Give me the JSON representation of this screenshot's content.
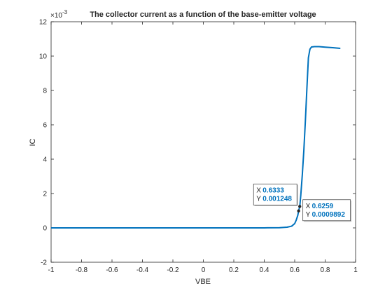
{
  "chart_data": {
    "type": "line",
    "title": "The collector current as a function of the base-emitter voltage",
    "xlabel": "VBE",
    "ylabel": "IC",
    "xlim": [
      -1,
      1
    ],
    "ylim": [
      -0.002,
      0.012
    ],
    "y_exponent_label": "×10",
    "y_exponent_power": "-3",
    "x_ticks": [
      -1,
      -0.8,
      -0.6,
      -0.4,
      -0.2,
      0,
      0.2,
      0.4,
      0.6,
      0.8,
      1
    ],
    "x_tick_labels": [
      "-1",
      "-0.8",
      "-0.6",
      "-0.4",
      "-0.2",
      "0",
      "0.2",
      "0.4",
      "0.6",
      "0.8",
      "1"
    ],
    "y_ticks": [
      -0.002,
      0,
      0.002,
      0.004,
      0.006,
      0.008,
      0.01,
      0.012
    ],
    "y_tick_labels": [
      "-2",
      "0",
      "2",
      "4",
      "6",
      "8",
      "10",
      "12"
    ],
    "grid": false,
    "line_color": "#0072bd",
    "series": [
      {
        "x": [
          -1,
          -0.8,
          -0.6,
          -0.4,
          -0.2,
          0,
          0.2,
          0.4,
          0.5,
          0.55,
          0.58,
          0.6,
          0.61,
          0.62,
          0.6259,
          0.6333,
          0.64,
          0.65,
          0.66,
          0.67,
          0.68,
          0.69,
          0.7,
          0.71,
          0.73,
          0.76,
          0.8,
          0.85,
          0.9
        ],
        "y": [
          0,
          0,
          0,
          0,
          0,
          0,
          0,
          2e-06,
          1e-05,
          4e-05,
          0.0001,
          0.00025,
          0.00045,
          0.00072,
          0.0009892,
          0.001248,
          0.0019,
          0.0031,
          0.0045,
          0.0062,
          0.0081,
          0.0099,
          0.0104,
          0.01053,
          0.01055,
          0.01055,
          0.01052,
          0.01049,
          0.01045
        ]
      }
    ],
    "datatips": [
      {
        "x_key": "X",
        "x_value": "0.6333",
        "y_key": "Y",
        "y_value": "0.001248",
        "x": 0.6333,
        "y": 0.001248,
        "side": "left"
      },
      {
        "x_key": "X",
        "x_value": "0.6259",
        "y_key": "Y",
        "y_value": "0.0009892",
        "x": 0.6259,
        "y": 0.0009892,
        "side": "right"
      }
    ]
  }
}
